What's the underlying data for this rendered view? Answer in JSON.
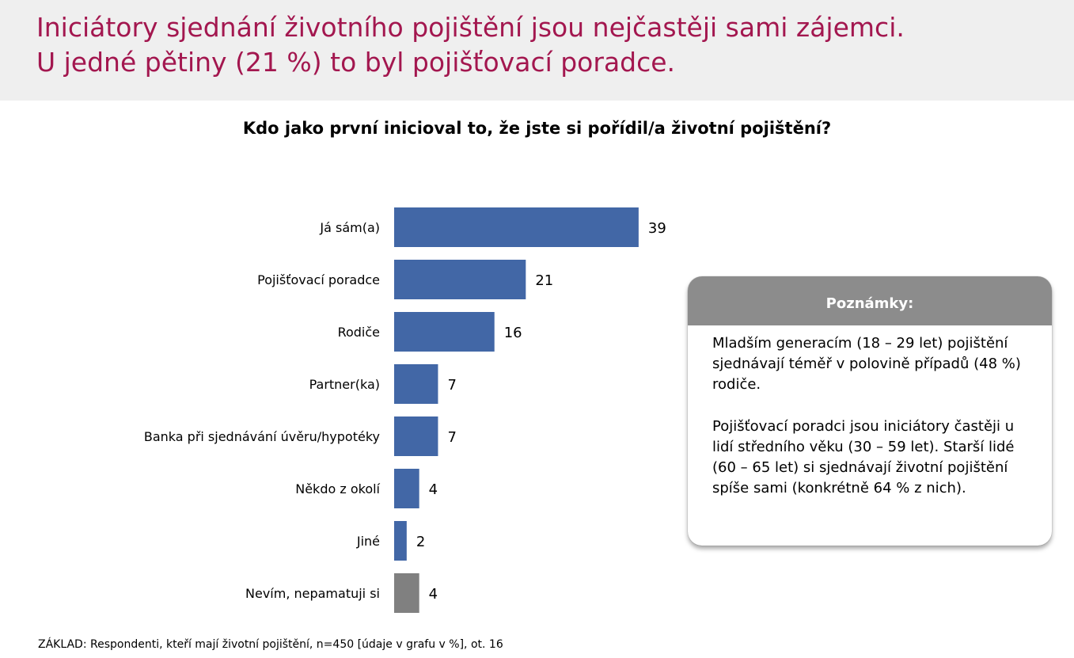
{
  "headline": {
    "line1": "Iniciátory sjednání životního pojištění jsou nejčastěji sami zájemci.",
    "line2": "U jedné pětiny (21 %) to byl pojišťovací poradce."
  },
  "colors": {
    "accent": "#a3174f",
    "bar": "#4267a6",
    "bar_other": "#808080",
    "notes_header": "#8c8c8c"
  },
  "chart_data": {
    "type": "bar",
    "orientation": "horizontal",
    "title": "Kdo jako první inicioval to, že jste si pořídil/a životní pojištění?",
    "categories": [
      "Já sám(a)",
      "Pojišťovací poradce",
      "Rodiče",
      "Partner(ka)",
      "Banka při sjednávání úvěru/hypotéky",
      "Někdo z okolí",
      "Jiné",
      "Nevím, nepamatuji si"
    ],
    "values": [
      39,
      21,
      16,
      7,
      7,
      4,
      2,
      4
    ],
    "xlim": [
      0,
      100
    ],
    "grid": false,
    "legend": "none"
  },
  "notes": {
    "title": "Poznámky:",
    "paragraph1": "Mladším generacím (18 – 29 let) pojištění sjednávají téměř v polovině případů (48 %) rodiče.",
    "paragraph2": "Pojišťovací poradci jsou iniciátory častěji u lidí středního věku (30 – 59 let). Starší lidé (60 – 65 let) si sjednávají životní pojištění spíše sami (konkrétně 64 % z nich)."
  },
  "footnote": "ZÁKLAD: Respondenti, kteří mají životní pojištění, n=450 [údaje v grafu v %], ot. 16"
}
